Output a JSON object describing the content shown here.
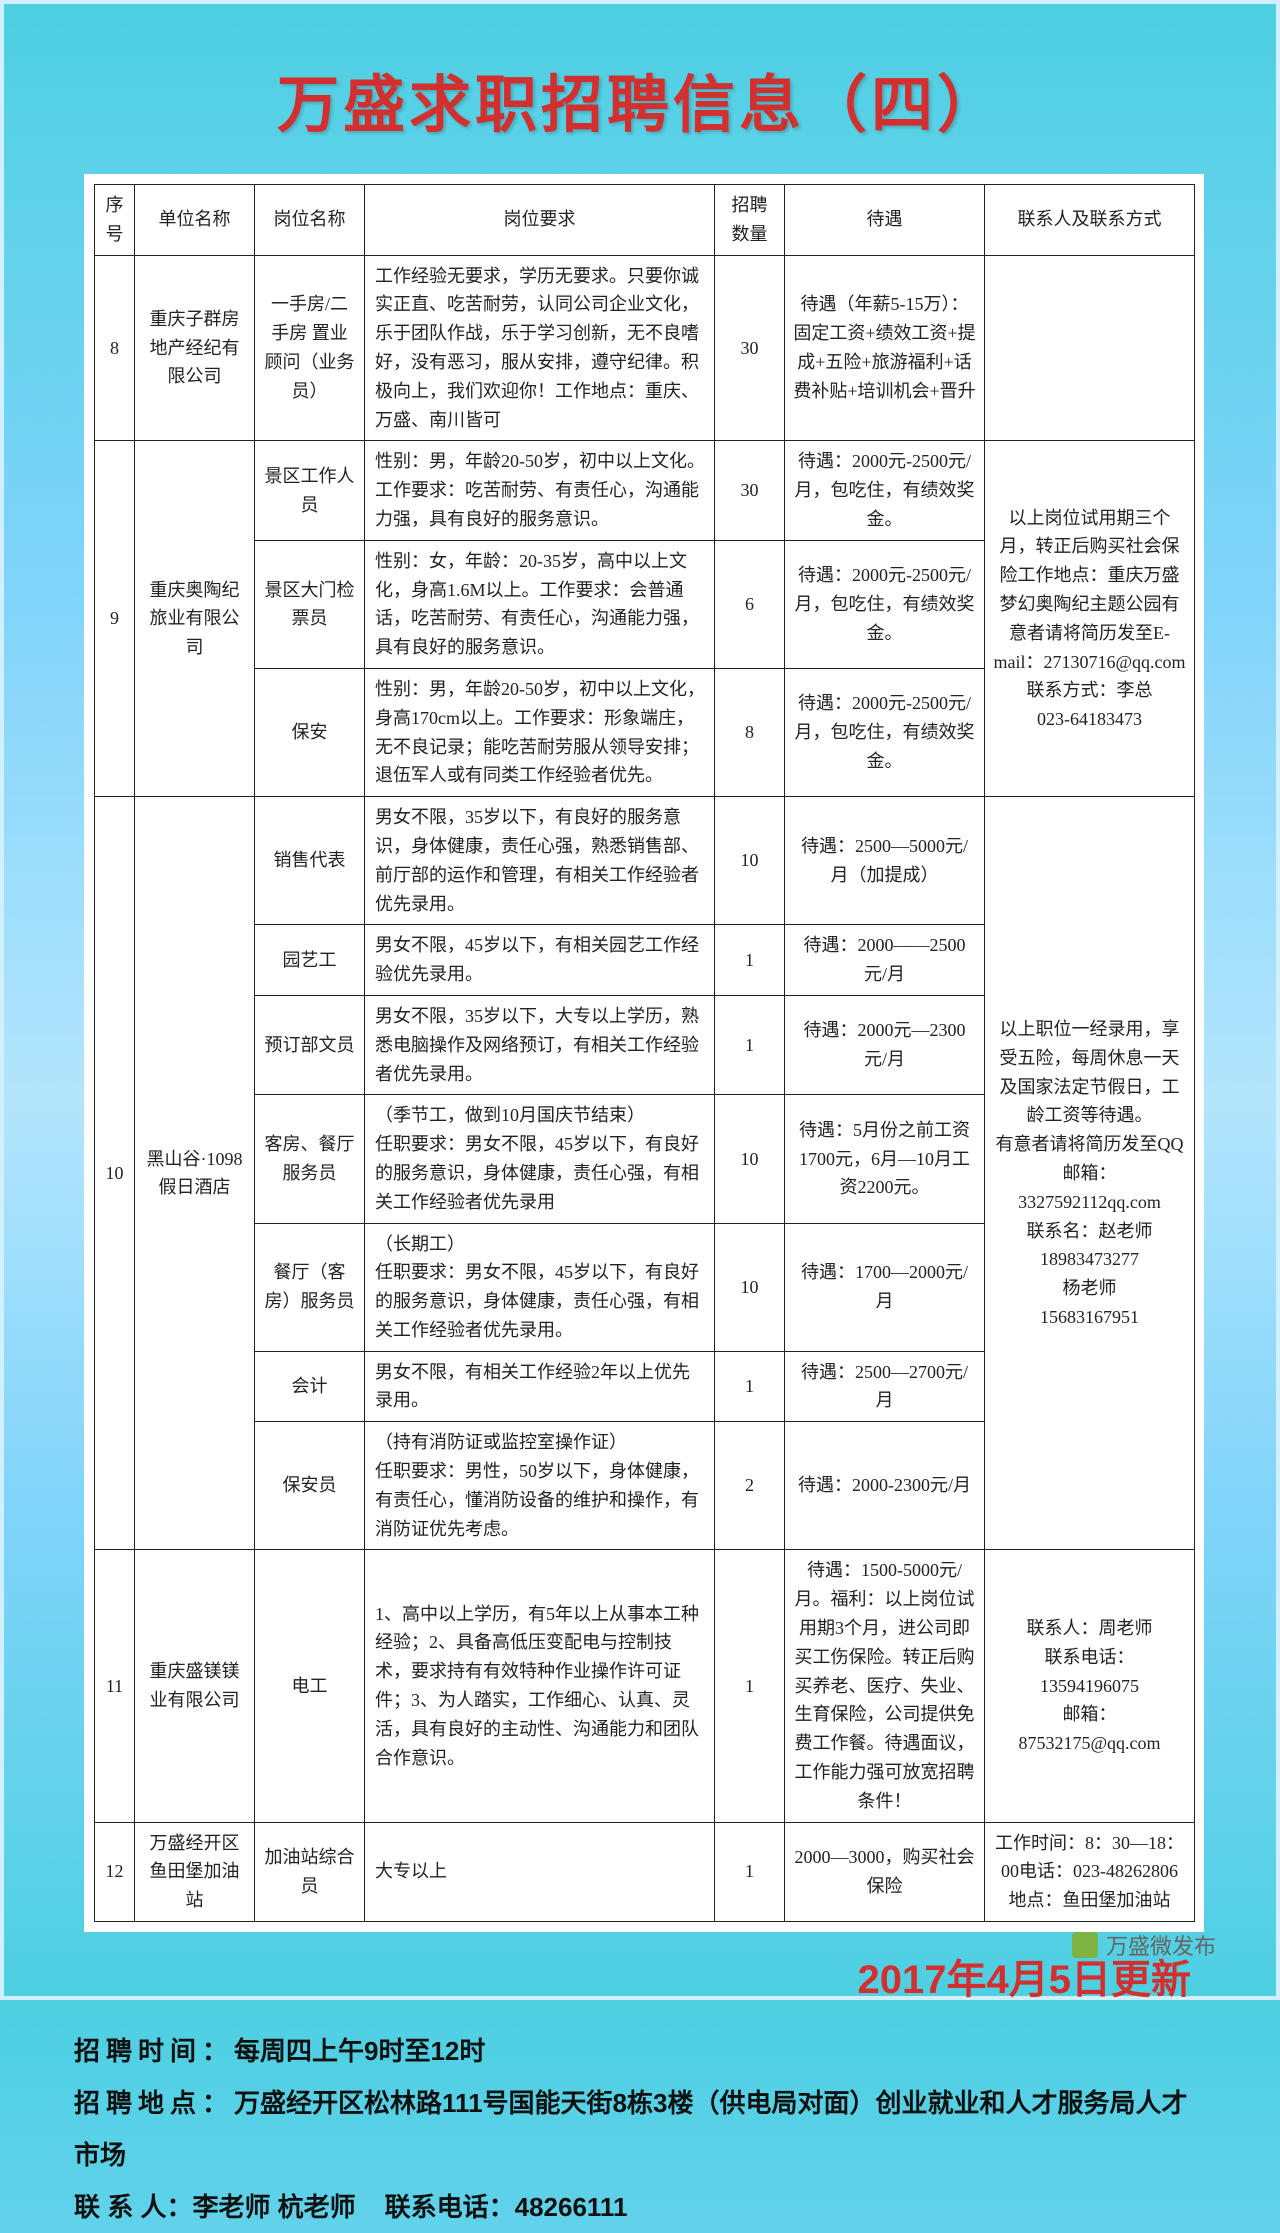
{
  "title": "万盛求职招聘信息（四）",
  "headers": [
    "序号",
    "单位名称",
    "岗位名称",
    "岗位要求",
    "招聘数量",
    "待遇",
    "联系人及联系方式"
  ],
  "rows": [
    {
      "seq": "8",
      "company": "重庆子群房地产经纪有限公司",
      "position": "一手房/二手房 置业顾问（业务员）",
      "requirement": "工作经验无要求，学历无要求。只要你诚实正直、吃苦耐劳，认同公司企业文化，乐于团队作战，乐于学习创新，无不良嗜好，没有恶习，服从安排，遵守纪律。积极向上，我们欢迎你！工作地点：重庆、万盛、南川皆可",
      "qty": "30",
      "pay": "待遇（年薪5-15万）：固定工资+绩效工资+提成+五险+旅游福利+话费补贴+培训机会+晋升",
      "contact": ""
    }
  ],
  "group9": {
    "seq": "9",
    "company": "重庆奥陶纪旅业有限公司",
    "contact": "以上岗位试用期三个月，转正后购买社会保险工作地点：重庆万盛梦幻奥陶纪主题公园有意者请将简历发至E-mail：27130716@qq.com\n联系方式：李总\n023-64183473",
    "items": [
      {
        "position": "景区工作人员",
        "requirement": "性别：男，年龄20-50岁，初中以上文化。工作要求：吃苦耐劳、有责任心，沟通能力强，具有良好的服务意识。",
        "qty": "30",
        "pay": "待遇：2000元-2500元/月，包吃住，有绩效奖金。"
      },
      {
        "position": "景区大门检票员",
        "requirement": "性别：女，年龄：20-35岁，高中以上文化，身高1.6M以上。工作要求：会普通话，吃苦耐劳、有责任心，沟通能力强，具有良好的服务意识。",
        "qty": "6",
        "pay": "待遇：2000元-2500元/月，包吃住，有绩效奖金。"
      },
      {
        "position": "保安",
        "requirement": "性别：男，年龄20-50岁，初中以上文化，身高170cm以上。工作要求：形象端庄，无不良记录；能吃苦耐劳服从领导安排；退伍军人或有同类工作经验者优先。",
        "qty": "8",
        "pay": "待遇：2000元-2500元/月，包吃住，有绩效奖金。"
      }
    ]
  },
  "group10": {
    "seq": "10",
    "company": "黑山谷·1098假日酒店",
    "contact": "以上职位一经录用，享受五险，每周休息一天及国家法定节假日，工龄工资等待遇。\n有意者请将简历发至QQ邮箱：\n3327592112qq.com\n联系名：赵老师\n18983473277\n杨老师\n15683167951",
    "items": [
      {
        "position": "销售代表",
        "requirement": "男女不限，35岁以下，有良好的服务意识，身体健康，责任心强，熟悉销售部、前厅部的运作和管理，有相关工作经验者优先录用。",
        "qty": "10",
        "pay": "待遇：2500—5000元/月（加提成）"
      },
      {
        "position": "园艺工",
        "requirement": "男女不限，45岁以下，有相关园艺工作经验优先录用。",
        "qty": "1",
        "pay": "待遇：2000——2500元/月"
      },
      {
        "position": "预订部文员",
        "requirement": "男女不限，35岁以下，大专以上学历，熟悉电脑操作及网络预订，有相关工作经验者优先录用。",
        "qty": "1",
        "pay": "待遇：2000元—2300元/月"
      },
      {
        "position": "客房、餐厅服务员",
        "requirement": "（季节工，做到10月国庆节结束）\n任职要求：男女不限，45岁以下，有良好的服务意识，身体健康，责任心强，有相关工作经验者优先录用",
        "qty": "10",
        "pay": "待遇：5月份之前工资1700元，6月—10月工资2200元。"
      },
      {
        "position": "餐厅（客房）服务员",
        "requirement": "（长期工）\n任职要求：男女不限，45岁以下，有良好的服务意识，身体健康，责任心强，有相关工作经验者优先录用。",
        "qty": "10",
        "pay": "待遇：1700—2000元/月"
      },
      {
        "position": "会计",
        "requirement": "男女不限，有相关工作经验2年以上优先录用。",
        "qty": "1",
        "pay": "待遇：2500—2700元/月"
      },
      {
        "position": "保安员",
        "requirement": "（持有消防证或监控室操作证）\n任职要求：男性，50岁以下，身体健康，有责任心，懂消防设备的维护和操作，有消防证优先考虑。",
        "qty": "2",
        "pay": "待遇：2000-2300元/月"
      }
    ]
  },
  "row11": {
    "seq": "11",
    "company": "重庆盛镁镁业有限公司",
    "position": "电工",
    "requirement": "1、高中以上学历，有5年以上从事本工种经验；2、具备高低压变配电与控制技术，要求持有有效特种作业操作许可证件；3、为人踏实，工作细心、认真、灵活，具有良好的主动性、沟通能力和团队合作意识。",
    "qty": "1",
    "pay": "待遇：1500-5000元/月。福利：以上岗位试用期3个月，进公司即买工伤保险。转正后购买养老、医疗、失业、生育保险，公司提供免费工作餐。待遇面议，工作能力强可放宽招聘条件！",
    "contact": "联系人：周老师\n联系电话：\n13594196075\n邮箱：\n87532175@qq.com"
  },
  "row12": {
    "seq": "12",
    "company": "万盛经开区鱼田堡加油站",
    "position": "加油站综合员",
    "requirement": "大专以上",
    "qty": "1",
    "pay": "2000—3000，购买社会保险",
    "contact": "工作时间：8：30—18：00电话：023-48262806地点：鱼田堡加油站"
  },
  "update_date": "2017年4月5日更新",
  "footer": {
    "time_label": "招聘时间：",
    "time_value": "每周四上午9时至12时",
    "addr_label": "招聘地点：",
    "addr_value": "万盛经开区松林路111号国能天街8栋3楼（供电局对面）创业就业和人才服务局人才市场",
    "contact_label": "联 系 人：",
    "contact_value": "李老师  杭老师",
    "phone_label": "联系电话：",
    "phone_value": "48266111"
  },
  "watermark": "万盛微发布"
}
